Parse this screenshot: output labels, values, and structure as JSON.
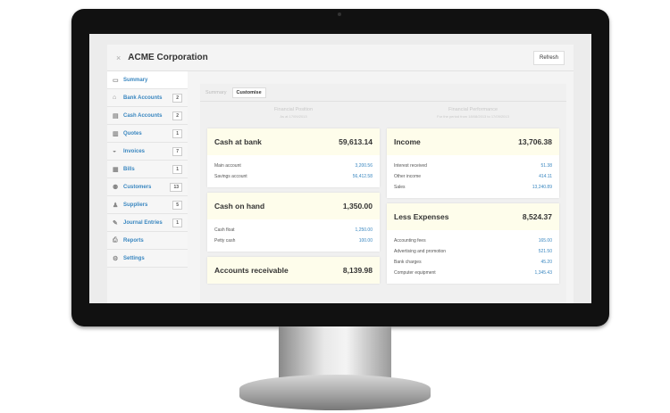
{
  "window": {
    "title": "ACME Corporation",
    "close_icon": "×",
    "refresh_label": "Refresh"
  },
  "sidebar": {
    "items": [
      {
        "label": "Summary",
        "icon": "monitor-icon",
        "badge": null
      },
      {
        "label": "Bank Accounts",
        "icon": "bank-icon",
        "badge": "2"
      },
      {
        "label": "Cash Accounts",
        "icon": "cash-icon",
        "badge": "2"
      },
      {
        "label": "Quotes",
        "icon": "quotes-icon",
        "badge": "1"
      },
      {
        "label": "Invoices",
        "icon": "invoice-icon",
        "badge": "7"
      },
      {
        "label": "Bills",
        "icon": "bills-icon",
        "badge": "1"
      },
      {
        "label": "Customers",
        "icon": "customers-icon",
        "badge": "13"
      },
      {
        "label": "Suppliers",
        "icon": "suppliers-icon",
        "badge": "5"
      },
      {
        "label": "Journal Entries",
        "icon": "journal-icon",
        "badge": "1"
      },
      {
        "label": "Reports",
        "icon": "reports-icon",
        "badge": null
      },
      {
        "label": "Settings",
        "icon": "settings-icon",
        "badge": null
      }
    ]
  },
  "tabs": [
    "Summary",
    "Customise"
  ],
  "position": {
    "title": "Financial Position",
    "subtitle": "As at 17/09/2013",
    "cards": [
      {
        "title": "Cash at bank",
        "total": "59,613.14",
        "rows": [
          {
            "label": "Main account",
            "value": "3,200.56"
          },
          {
            "label": "Savings account",
            "value": "56,412.58"
          }
        ]
      },
      {
        "title": "Cash on hand",
        "total": "1,350.00",
        "rows": [
          {
            "label": "Cash float",
            "value": "1,250.00"
          },
          {
            "label": "Petty cash",
            "value": "100.00"
          }
        ]
      },
      {
        "title": "Accounts receivable",
        "total": "8,139.98",
        "rows": []
      }
    ]
  },
  "performance": {
    "title": "Financial Performance",
    "subtitle": "For the period from 18/08/2013 to 17/09/2013",
    "cards": [
      {
        "title": "Income",
        "total": "13,706.38",
        "rows": [
          {
            "label": "Interest received",
            "value": "51.38"
          },
          {
            "label": "Other income",
            "value": "414.11"
          },
          {
            "label": "Sales",
            "value": "13,240.89"
          }
        ]
      },
      {
        "title": "Less Expenses",
        "total": "8,524.37",
        "rows": [
          {
            "label": "Accounting fees",
            "value": "165.00"
          },
          {
            "label": "Advertising and promotion",
            "value": "521.50"
          },
          {
            "label": "Bank charges",
            "value": "45.20"
          },
          {
            "label": "Computer equipment",
            "value": "1,345.43"
          }
        ]
      }
    ]
  },
  "colors": {
    "link": "#3a87c0",
    "card_header": "#fefdeb"
  }
}
